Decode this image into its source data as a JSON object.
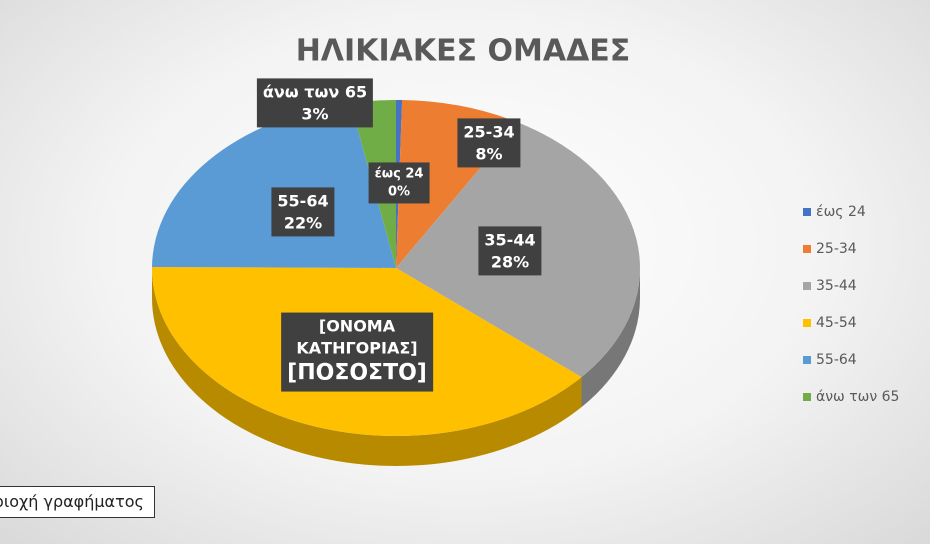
{
  "chart_data": {
    "type": "pie3d",
    "title": "ΗΛΙΚΙΑΚΕΣ ΟΜΑΔΕΣ",
    "categories": [
      "έως 24",
      "25-34",
      "35-44",
      "45-54",
      "55-64",
      "άνω των 65"
    ],
    "values": [
      0.4,
      8,
      28,
      39,
      22,
      3
    ],
    "value_labels": [
      "0%",
      "8%",
      "28%",
      "[ΠΟΣΟΣΤΟ]",
      "22%",
      "3%"
    ],
    "label_categories": [
      "έως 24",
      "25-34",
      "35-44",
      "[ΟΝΟΜΑ ΚΑΤΗΓΟΡΙΑΣ]",
      "55-64",
      "άνω των 65"
    ],
    "colors": [
      "#4472c4",
      "#ed7d31",
      "#a5a5a5",
      "#ffc000",
      "#5b9bd5",
      "#70ad47"
    ],
    "legend": "right",
    "tooltip": "Περιοχή γραφήματος"
  }
}
